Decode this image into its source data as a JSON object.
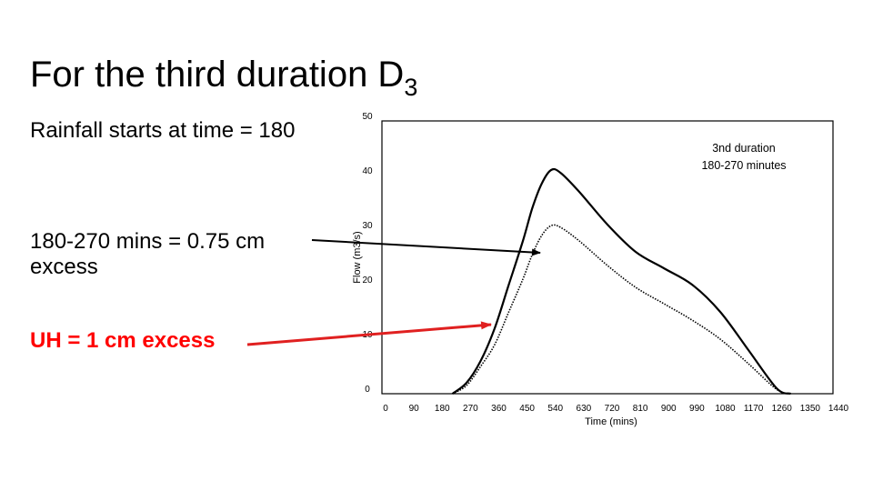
{
  "slide": {
    "title": "For the third duration D",
    "title_subscript": "3",
    "note_start": "Rainfall starts at time = 180",
    "note_excess": "180-270 mins = 0.75 cm excess",
    "note_uh": "UH = 1 cm excess"
  },
  "colors": {
    "text": "#000000",
    "uh_arrow": "#e02020",
    "note_uh": "#ff0000"
  },
  "chart_data": {
    "type": "line",
    "title": "",
    "xlabel": "Time (mins)",
    "ylabel": "Flow (m3/s)",
    "xlim": [
      0,
      1440
    ],
    "ylim": [
      0,
      50
    ],
    "x_ticks": [
      0,
      90,
      180,
      270,
      360,
      450,
      540,
      630,
      720,
      810,
      900,
      990,
      1080,
      1170,
      1260,
      1350,
      1440
    ],
    "y_ticks": [
      0,
      10,
      20,
      30,
      40,
      50
    ],
    "grid": false,
    "legend": "none",
    "annotation": {
      "line1": "3nd duration",
      "line2": "180-270 minutes"
    },
    "series": [
      {
        "style": "solid",
        "x": [
          225,
          270,
          315,
          360,
          405,
          450,
          480,
          510,
          540,
          570,
          630,
          720,
          810,
          900,
          990,
          1080,
          1170,
          1260,
          1305
        ],
        "y": [
          0,
          2,
          6,
          12,
          20,
          28,
          34,
          38.5,
          41,
          40.5,
          37,
          31,
          26,
          23,
          20,
          15,
          8,
          1,
          0
        ]
      },
      {
        "style": "dotted",
        "x": [
          225,
          270,
          315,
          360,
          405,
          450,
          480,
          510,
          540,
          570,
          630,
          720,
          810,
          900,
          990,
          1080,
          1170,
          1260,
          1305
        ],
        "y": [
          0,
          1.5,
          5,
          9,
          15,
          21,
          25.5,
          29,
          30.8,
          30.5,
          28,
          23.5,
          19.5,
          16.5,
          13.5,
          10,
          5.5,
          0.8,
          0
        ]
      }
    ]
  }
}
